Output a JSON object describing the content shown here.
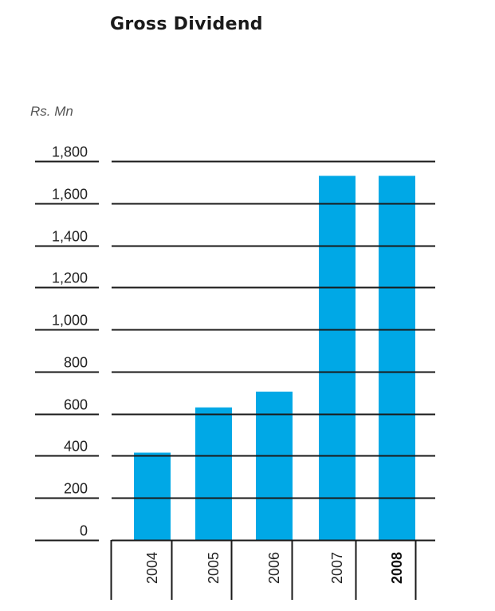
{
  "chart_data": {
    "type": "bar",
    "title": "Gross Dividend",
    "ylabel": "Rs. Mn",
    "xlabel": "",
    "categories": [
      "2004",
      "2005",
      "2006",
      "2007",
      "2008"
    ],
    "values": [
      415,
      630,
      705,
      1730,
      1730
    ],
    "yticks": [
      "0",
      "200",
      "400",
      "600",
      "800",
      "1,000",
      "1,200",
      "1,400",
      "1,600",
      "1,800"
    ],
    "ylim": [
      0,
      1800
    ],
    "highlight_category": "2008",
    "grid": true,
    "bar_color": "#00a8e6",
    "grid_color": "#1a1a1a"
  }
}
